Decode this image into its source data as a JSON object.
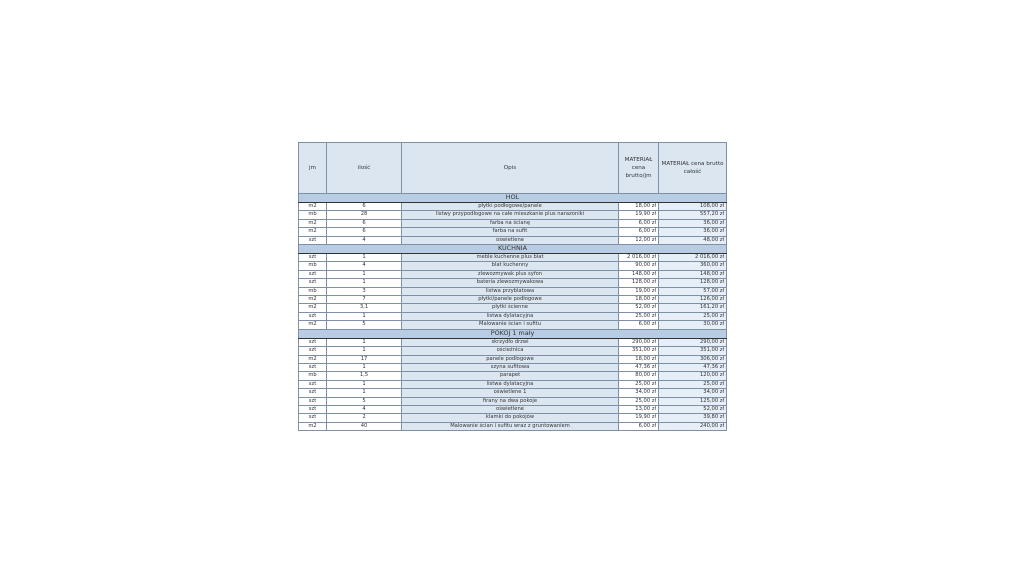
{
  "headers": [
    "jm",
    "ilość",
    "Opis",
    "MATERIAŁ cena brutto/jm",
    "MATERIAŁ cena brutto całość"
  ],
  "sections": [
    {
      "title": "HOL",
      "rows": [
        [
          "m2",
          "6",
          "płytki podłogowe/panele",
          "18,00 zł",
          "108,00 zł"
        ],
        [
          "mb",
          "28",
          "listwy przypodłogowe na całe mieszkanie plus narazoniki",
          "19,90 zł",
          "557,20 zł"
        ],
        [
          "m2",
          "6",
          "farba na ścianę",
          "6,00 zł",
          "36,00 zł"
        ],
        [
          "m2",
          "6",
          "farba na sufit",
          "6,00 zł",
          "36,00 zł"
        ],
        [
          "szt",
          "4",
          "oświetlene",
          "12,00 zł",
          "48,00 zł"
        ]
      ]
    },
    {
      "title": "KUCHNIA",
      "rows": [
        [
          "szt",
          "1",
          "meble kuchenne plus blat",
          "2 016,00 zł",
          "2 016,00 zł"
        ],
        [
          "mb",
          "4",
          "blat kuchenny",
          "90,00 zł",
          "360,00 zł"
        ],
        [
          "szt",
          "1",
          "zlewozmywak plus syfon",
          "148,00 zł",
          "148,00 zł"
        ],
        [
          "szt",
          "1",
          "bateria zlewozmywakowa",
          "128,00 zł",
          "128,00 zł"
        ],
        [
          "mb",
          "3",
          "listwa przyblatowa",
          "19,00 zł",
          "57,00 zł"
        ],
        [
          "m2",
          "7",
          "płytki/panele podłogowe",
          "18,00 zł",
          "126,00 zł"
        ],
        [
          "m2",
          "3,1",
          "płytki ścienne",
          "52,00 zł",
          "161,20 zł"
        ],
        [
          "szt",
          "1",
          "listwa dylatacyjna",
          "25,00 zł",
          "25,00 zł"
        ],
        [
          "m2",
          "5",
          "Malowanie ścian i sufitu",
          "6,00 zł",
          "30,00 zł"
        ]
      ]
    },
    {
      "title": "POKÓJ 1 mały",
      "rows": [
        [
          "szt",
          "1",
          "skrzydło drzwi",
          "290,00 zł",
          "290,00 zł"
        ],
        [
          "szt",
          "1",
          "ościeżnica",
          "351,00 zł",
          "351,00 zł"
        ],
        [
          "m2",
          "17",
          "panele podłogowe",
          "18,00 zł",
          "306,00 zł"
        ],
        [
          "szt",
          "1",
          "szyna sufitowa",
          "47,36 zł",
          "47,36 zł"
        ],
        [
          "mb",
          "1,5",
          "parapet",
          "80,00 zł",
          "120,00 zł"
        ],
        [
          "szt",
          "1",
          "listwa dylatacyjna",
          "25,00 zł",
          "25,00 zł"
        ],
        [
          "szt",
          "1",
          "oświetlene 1",
          "34,00 zł",
          "34,00 zł"
        ],
        [
          "szt",
          "5",
          "firany na dwa pokoje",
          "25,00 zł",
          "125,00 zł"
        ],
        [
          "szt",
          "4",
          "oświetlene",
          "13,00 zł",
          "52,00 zł"
        ],
        [
          "szt",
          "2",
          "klamki do pokojów",
          "19,90 zł",
          "39,80 zł"
        ],
        [
          "m2",
          "40",
          "Malowanie ścian i sufitu wraz z gruntowaniem",
          "6,00 zł",
          "240,00 zł"
        ]
      ]
    }
  ]
}
